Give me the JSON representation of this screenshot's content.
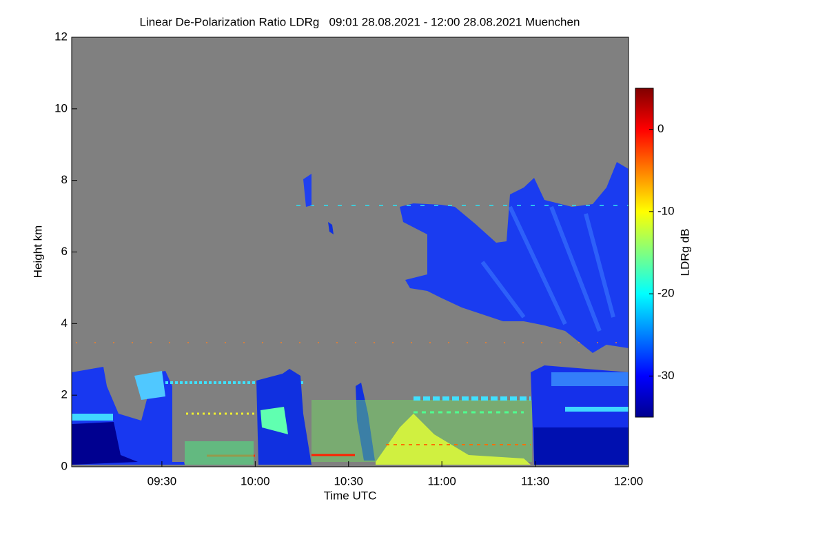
{
  "chart_data": {
    "type": "heatmap",
    "title": "Linear De-Polarization Ratio LDRg   09:01 28.08.2021 - 12:00 28.08.2021 Muenchen",
    "x_label": "Time UTC",
    "y_label": "Height km",
    "colorbar_label": "LDRg dB",
    "xlim": [
      541,
      720
    ],
    "xticks": [
      {
        "value": 570,
        "label": "09:30"
      },
      {
        "value": 600,
        "label": "10:00"
      },
      {
        "value": 630,
        "label": "10:30"
      },
      {
        "value": 660,
        "label": "11:00"
      },
      {
        "value": 690,
        "label": "11:30"
      },
      {
        "value": 720,
        "label": "12:00"
      }
    ],
    "ylim": [
      0,
      12
    ],
    "yticks": [
      0,
      2,
      4,
      6,
      8,
      10,
      12
    ],
    "clim": [
      -35,
      5
    ],
    "cticks": [
      0,
      -10,
      -20,
      -30
    ],
    "colormap": "jet",
    "background": "#808080"
  }
}
